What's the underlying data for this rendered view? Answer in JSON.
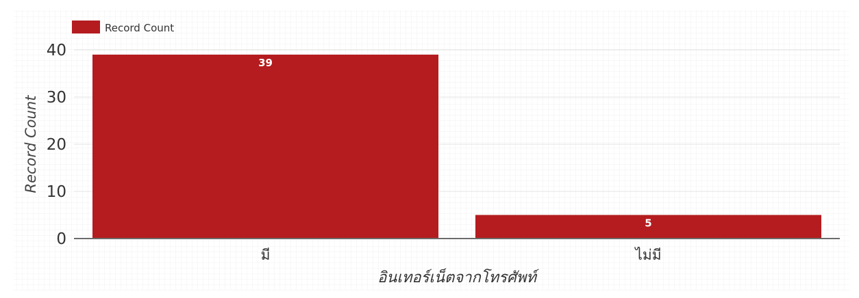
{
  "chart_data": {
    "type": "bar",
    "categories": [
      "มี",
      "ไม่มี"
    ],
    "series": [
      {
        "name": "Record Count",
        "values": [
          39,
          5
        ]
      }
    ],
    "value_labels": [
      "39",
      "5"
    ],
    "xlabel": "อินเทอร์เน็ตจากโทรศัพท์",
    "ylabel": "Record Count",
    "ylim": [
      0,
      40
    ],
    "yticks": [
      0,
      10,
      20,
      30,
      40
    ],
    "ytick_labels": [
      "0",
      "10",
      "20",
      "30",
      "40"
    ],
    "grid": true,
    "legend_position": "top-left",
    "colors": {
      "bar": "#b41c1f",
      "axis": "#6b6b6b",
      "grid": "#ececec",
      "text": "#444444",
      "value_label": "#ffffff"
    }
  }
}
